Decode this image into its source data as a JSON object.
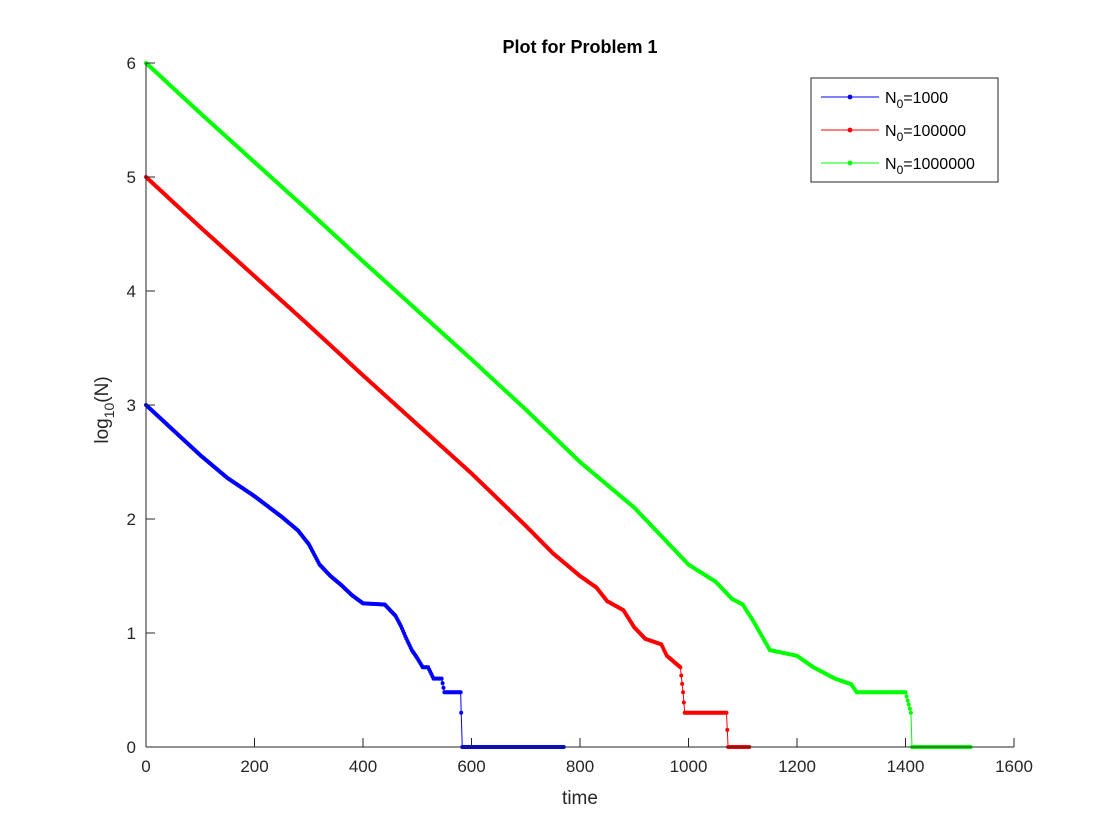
{
  "chart_data": {
    "type": "line",
    "title": "Plot for Problem 1",
    "xlabel": "time",
    "ylabel": {
      "base": "log",
      "sub": "10",
      "rest": "(N)"
    },
    "xlim": [
      0,
      1600
    ],
    "ylim": [
      0,
      6
    ],
    "xticks": [
      0,
      200,
      400,
      600,
      800,
      1000,
      1200,
      1400,
      1600
    ],
    "yticks": [
      0,
      1,
      2,
      3,
      4,
      5,
      6
    ],
    "grid": false,
    "legend_position": "top-right",
    "series": [
      {
        "name": "N0=1000",
        "legend": {
          "main": "N",
          "sub": "0",
          "rest": "=1000"
        },
        "color": "#0000ff",
        "points": [
          [
            0,
            3.0
          ],
          [
            50,
            2.78
          ],
          [
            100,
            2.56
          ],
          [
            150,
            2.36
          ],
          [
            200,
            2.2
          ],
          [
            250,
            2.02
          ],
          [
            280,
            1.9
          ],
          [
            300,
            1.78
          ],
          [
            320,
            1.6
          ],
          [
            340,
            1.5
          ],
          [
            360,
            1.42
          ],
          [
            380,
            1.33
          ],
          [
            400,
            1.26
          ],
          [
            440,
            1.25
          ],
          [
            460,
            1.15
          ],
          [
            470,
            1.06
          ],
          [
            480,
            0.95
          ],
          [
            490,
            0.85
          ],
          [
            500,
            0.78
          ],
          [
            510,
            0.7
          ],
          [
            520,
            0.7
          ],
          [
            530,
            0.6
          ],
          [
            545,
            0.6
          ],
          [
            550,
            0.48
          ],
          [
            580,
            0.48
          ],
          [
            581,
            0.3
          ],
          [
            583,
            0.0
          ],
          [
            770,
            0.0
          ]
        ]
      },
      {
        "name": "N0=100000",
        "legend": {
          "main": "N",
          "sub": "0",
          "rest": "=100000"
        },
        "color": "#ff0000",
        "points": [
          [
            0,
            5.0
          ],
          [
            100,
            4.56
          ],
          [
            200,
            4.13
          ],
          [
            300,
            3.7
          ],
          [
            400,
            3.26
          ],
          [
            500,
            2.83
          ],
          [
            600,
            2.4
          ],
          [
            700,
            1.94
          ],
          [
            750,
            1.7
          ],
          [
            800,
            1.5
          ],
          [
            830,
            1.4
          ],
          [
            850,
            1.28
          ],
          [
            880,
            1.2
          ],
          [
            900,
            1.05
          ],
          [
            920,
            0.95
          ],
          [
            950,
            0.9
          ],
          [
            960,
            0.8
          ],
          [
            985,
            0.7
          ],
          [
            990,
            0.48
          ],
          [
            993,
            0.3
          ],
          [
            1070,
            0.3
          ],
          [
            1073,
            0.0
          ],
          [
            1112,
            0.0
          ]
        ]
      },
      {
        "name": "N0=1000000",
        "legend": {
          "main": "N",
          "sub": "0",
          "rest": "=1000000"
        },
        "color": "#00ff00",
        "points": [
          [
            0,
            6.0
          ],
          [
            100,
            5.56
          ],
          [
            200,
            5.13
          ],
          [
            300,
            4.7
          ],
          [
            400,
            4.26
          ],
          [
            500,
            3.83
          ],
          [
            600,
            3.4
          ],
          [
            700,
            2.96
          ],
          [
            800,
            2.5
          ],
          [
            900,
            2.1
          ],
          [
            950,
            1.85
          ],
          [
            1000,
            1.6
          ],
          [
            1050,
            1.45
          ],
          [
            1080,
            1.3
          ],
          [
            1100,
            1.25
          ],
          [
            1120,
            1.1
          ],
          [
            1150,
            0.85
          ],
          [
            1200,
            0.8
          ],
          [
            1230,
            0.7
          ],
          [
            1270,
            0.6
          ],
          [
            1300,
            0.55
          ],
          [
            1310,
            0.48
          ],
          [
            1400,
            0.48
          ],
          [
            1410,
            0.3
          ],
          [
            1412,
            0.0
          ],
          [
            1520,
            0.0
          ]
        ]
      }
    ]
  }
}
